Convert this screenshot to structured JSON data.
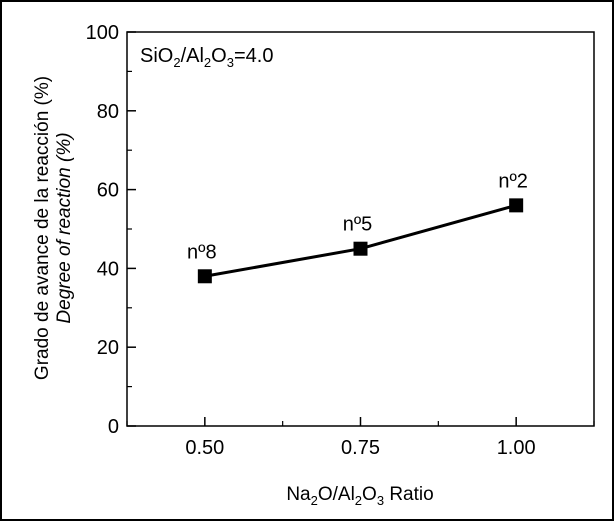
{
  "chart_data": {
    "type": "line",
    "annotation": {
      "main": "SiO",
      "sub1": "2",
      "mid": "/Al",
      "sub2": "2",
      "mid2": "O",
      "sub3": "3",
      "tail": "=4.0"
    },
    "xlabel": {
      "p1": "Na",
      "s1": "2",
      "p2": "O/Al",
      "s2": "2",
      "p3": "O",
      "s3": "3",
      "p4": " Ratio"
    },
    "ylabel": "Grado de avance de la reacción (%)",
    "ylabel2": "Degree of reaction (%)",
    "xlim": [
      0.375,
      1.125
    ],
    "ylim": [
      0,
      100
    ],
    "x_ticks": [
      "0.50",
      "0.75",
      "1.00"
    ],
    "x_tick_values": [
      0.5,
      0.75,
      1.0
    ],
    "y_ticks": [
      "0",
      "20",
      "40",
      "60",
      "80",
      "100"
    ],
    "y_tick_values": [
      0,
      20,
      40,
      60,
      80,
      100
    ],
    "grid": false,
    "series": [
      {
        "x": [
          0.5,
          0.75,
          1.0
        ],
        "y": [
          38,
          45,
          56
        ],
        "point_labels": [
          "nº8",
          "nº5",
          "nº2"
        ],
        "color": "#000000",
        "marker": "square"
      }
    ]
  }
}
